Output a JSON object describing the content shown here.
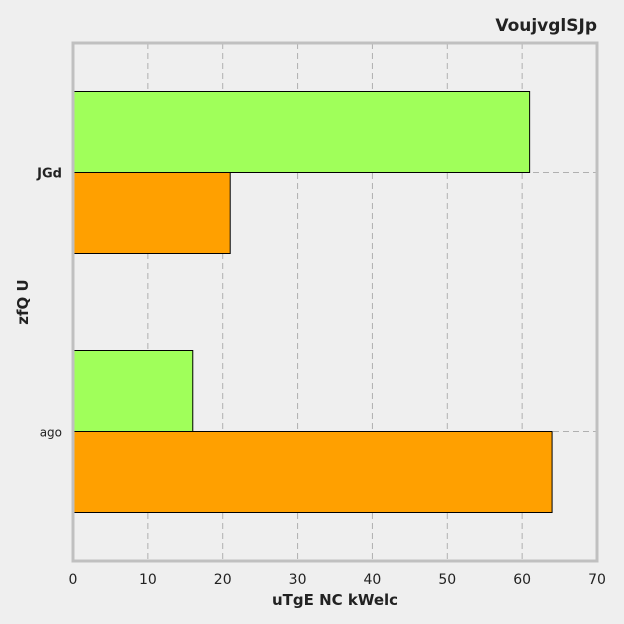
{
  "chart_data": {
    "type": "bar",
    "orientation": "horizontal",
    "title": "VoujvglSJp",
    "xlabel": "uTgE NC kWelc",
    "ylabel": "zfQ U",
    "categories": [
      "JGd",
      "ago"
    ],
    "series": [
      {
        "values": [
          61,
          16
        ],
        "color": "#a0ff5a"
      },
      {
        "values": [
          21,
          64
        ],
        "color": "#ffa000"
      }
    ],
    "xlim": [
      0,
      70
    ],
    "xticks": [
      "0",
      "10",
      "20",
      "30",
      "40",
      "50",
      "60",
      "70"
    ],
    "grid": true,
    "legend": "none"
  }
}
